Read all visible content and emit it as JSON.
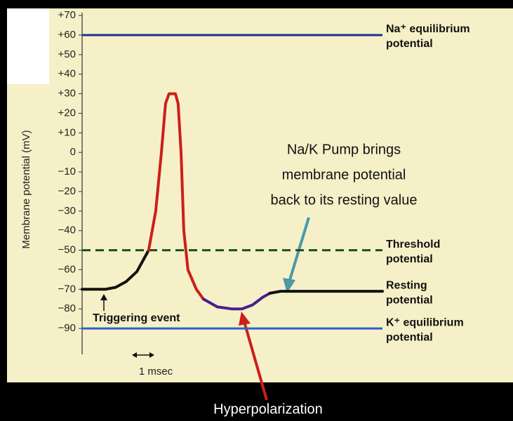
{
  "chart_data": {
    "type": "line",
    "y_label": "Membrane potential (mV)",
    "ylim": [
      -103,
      71
    ],
    "xlim": [
      0,
      15.3
    ],
    "yticks": [
      {
        "value": 70,
        "label": "+70"
      },
      {
        "value": 60,
        "label": "+60"
      },
      {
        "value": 50,
        "label": "+50"
      },
      {
        "value": 40,
        "label": "+40"
      },
      {
        "value": 30,
        "label": "+30"
      },
      {
        "value": 20,
        "label": "+20"
      },
      {
        "value": 10,
        "label": "+10"
      },
      0,
      {
        "value": -10,
        "label": "−10"
      },
      {
        "value": -20,
        "label": "−20"
      },
      {
        "value": -30,
        "label": "−30"
      },
      {
        "value": -40,
        "label": "−40"
      },
      {
        "value": -50,
        "label": "−50"
      },
      {
        "value": -60,
        "label": "−60"
      },
      {
        "value": -70,
        "label": "−70"
      },
      {
        "value": -80,
        "label": "−80"
      },
      {
        "value": -90,
        "label": "−90"
      }
    ],
    "series": [
      {
        "color": "#111111",
        "x": [
          0,
          1.18,
          1.71,
          2.25,
          2.79,
          3.39
        ],
        "values": [
          -70,
          -70,
          -69,
          -66,
          -61,
          -50
        ]
      },
      {
        "color": "#cc1f1a",
        "x": [
          3.39,
          3.75,
          4.04,
          4.25,
          4.43,
          4.75,
          4.89,
          5.04,
          5.18,
          5.39,
          5.82,
          6.18
        ],
        "values": [
          -50,
          -30,
          0,
          25,
          30,
          30,
          25,
          0,
          -40,
          -60,
          -70,
          -75
        ]
      },
      {
        "color": "#4b1d8c",
        "x": [
          6.18,
          6.89,
          7.61,
          8.14,
          8.68,
          9.21,
          9.57
        ],
        "values": [
          -75,
          -79,
          -80,
          -80,
          -78,
          -74,
          -72
        ]
      },
      {
        "color": "#111111",
        "x": [
          9.57,
          10.11,
          15.3
        ],
        "values": [
          -72,
          -71,
          -71
        ]
      }
    ],
    "reference_lines": [
      {
        "value": 60,
        "color": "#1f2f8f",
        "dashed": false,
        "label": [
          "Na⁺ equilibrium",
          "potential"
        ]
      },
      {
        "value": -50,
        "color": "#1d4d1d",
        "dashed": true,
        "label": [
          "Threshold",
          "potential"
        ]
      },
      {
        "value": -71,
        "color": null,
        "dashed": false,
        "label": [
          "Resting",
          "potential"
        ]
      },
      {
        "value": -90,
        "color": "#2a62c9",
        "dashed": false,
        "label": [
          "K⁺ equilibrium",
          "potential"
        ]
      }
    ],
    "annotations": {
      "trigger": "Triggering event",
      "scale": "1 msec",
      "pump": [
        "Na/K Pump brings",
        "membrane potential",
        "back  to its resting value"
      ],
      "hyper": "Hyperpolarization"
    }
  }
}
